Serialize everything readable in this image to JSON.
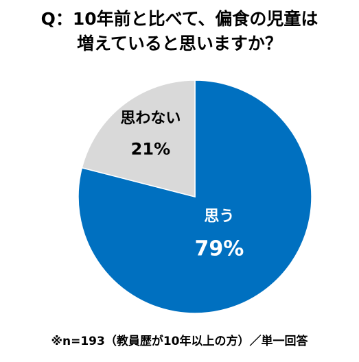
{
  "title": {
    "line1": "Q：10年前と比べて、偏食の児童は",
    "line2": "増えていると思いますか？"
  },
  "footnote": "※n=193（教員歴が10年以上の方）／単一回答",
  "chart_data": {
    "type": "pie",
    "start_angle": "12 o'clock",
    "direction": "clockwise",
    "slices": [
      {
        "label": "思う",
        "value": 79,
        "display": "79%",
        "color": "#0070C0",
        "text_color": "#ffffff"
      },
      {
        "label": "思わない",
        "value": 21,
        "display": "21%",
        "color": "#D9D9D9",
        "text_color": "#000000"
      }
    ]
  }
}
